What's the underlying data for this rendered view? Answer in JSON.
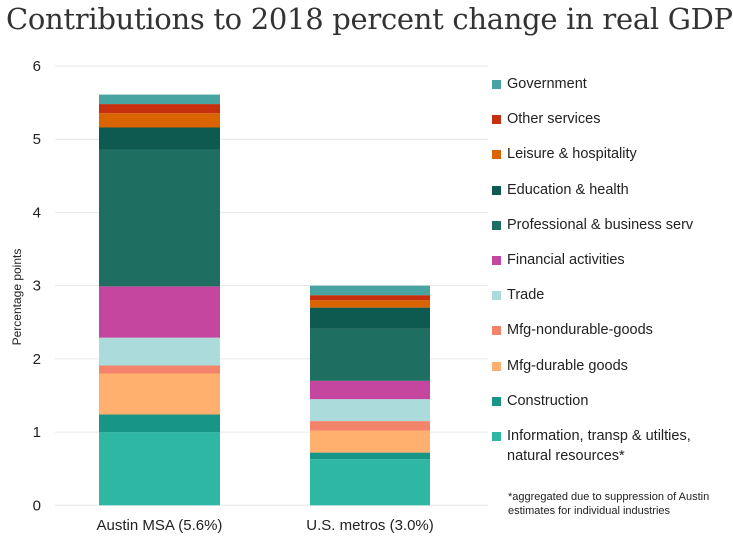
{
  "chart_data": {
    "type": "bar",
    "stacked": true,
    "title": "Contributions to 2018 percent change in real GDP",
    "ylabel": "Percentage points",
    "xlabel": "",
    "ylim": [
      0,
      6
    ],
    "yticks": [
      "0",
      "1",
      "2",
      "3",
      "4",
      "5",
      "6"
    ],
    "grid": true,
    "legend_position": "right",
    "categories": [
      "Austin MSA (5.6%)",
      "U.S. metros (3.0%)"
    ],
    "series": [
      {
        "name": "Information, transp & utilties, natural resources*",
        "color": "#2eb8a3",
        "values": [
          1.0,
          0.63
        ]
      },
      {
        "name": "Construction",
        "color": "#179585",
        "values": [
          0.24,
          0.09
        ]
      },
      {
        "name": "Mfg-durable goods",
        "color": "#ffb06e",
        "values": [
          0.56,
          0.3
        ]
      },
      {
        "name": "Mfg-nondurable-goods",
        "color": "#f4836b",
        "values": [
          0.11,
          0.13
        ]
      },
      {
        "name": "Trade",
        "color": "#acdbdb",
        "values": [
          0.38,
          0.3
        ]
      },
      {
        "name": "Financial activities",
        "color": "#c4469e",
        "values": [
          0.7,
          0.25
        ]
      },
      {
        "name": "Professional & business serv",
        "color": "#1e6e62",
        "values": [
          1.87,
          0.71
        ]
      },
      {
        "name": "Education & health",
        "color": "#0e5950",
        "values": [
          0.3,
          0.29
        ]
      },
      {
        "name": "Leisure & hospitality",
        "color": "#d96400",
        "values": [
          0.195,
          0.1
        ]
      },
      {
        "name": "Other services",
        "color": "#c6300f",
        "values": [
          0.125,
          0.07
        ]
      },
      {
        "name": "Government",
        "color": "#48a4a0",
        "values": [
          0.13,
          0.13
        ]
      }
    ],
    "footnote": "*aggregated due to suppression of Austin estimates for individual industries"
  }
}
